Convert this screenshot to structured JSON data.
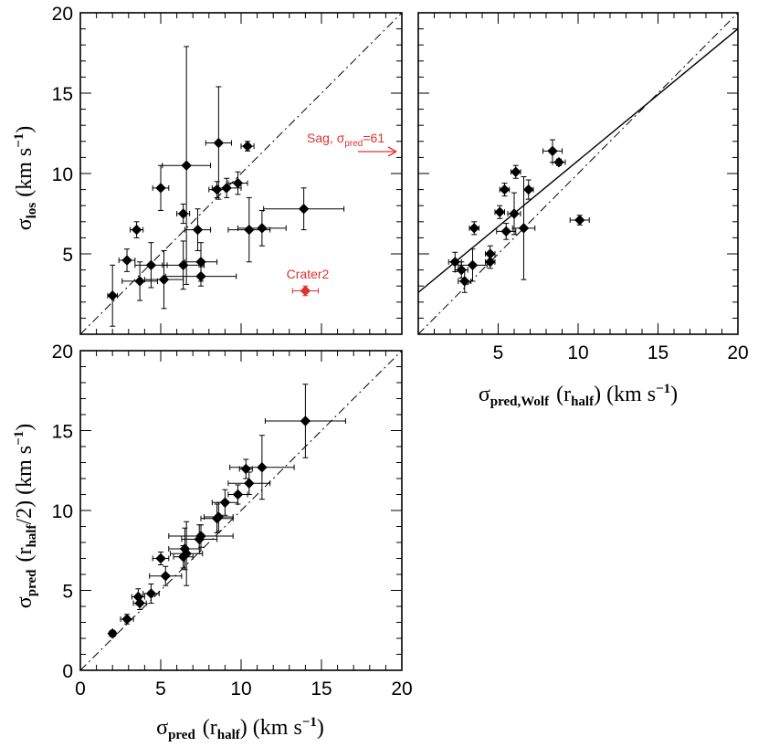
{
  "chart_data": [
    {
      "id": "panel_a",
      "type": "scatter",
      "title": "",
      "xlabel": "",
      "ylabel_sym": "σ",
      "ylabel_sub": "los",
      "ylabel_units": "(km s",
      "ylabel_exp": "−1",
      "ylabel_close": ")",
      "xlim": [
        0,
        20
      ],
      "ylim": [
        0,
        20
      ],
      "xticks": [],
      "yticks": [
        "5",
        "10",
        "15",
        "20"
      ],
      "reference_lines": [
        {
          "kind": "one-to-one",
          "style": "dash-dot"
        }
      ],
      "points": [
        {
          "x": 2.0,
          "y": 2.4,
          "xerr": 0.3,
          "yerr": 1.9
        },
        {
          "x": 2.9,
          "y": 4.6,
          "xerr": 0.5,
          "yerr": 0.7
        },
        {
          "x": 3.5,
          "y": 6.5,
          "xerr": 0.4,
          "yerr": 0.5
        },
        {
          "x": 3.7,
          "y": 3.3,
          "xerr": 1.1,
          "yerr": 1.2
        },
        {
          "x": 4.4,
          "y": 4.3,
          "xerr": 1.0,
          "yerr": 1.4
        },
        {
          "x": 5.0,
          "y": 9.1,
          "xerr": 0.5,
          "yerr": 1.4
        },
        {
          "x": 5.2,
          "y": 3.4,
          "xerr": 1.2,
          "yerr": 1.8
        },
        {
          "x": 6.4,
          "y": 7.5,
          "xerr": 0.4,
          "yerr": 0.6
        },
        {
          "x": 6.4,
          "y": 4.3,
          "xerr": 1.3,
          "yerr": 1.5
        },
        {
          "x": 6.6,
          "y": 10.5,
          "xerr": 1.5,
          "yerr": 7.4
        },
        {
          "x": 7.3,
          "y": 6.5,
          "xerr": 0.8,
          "yerr": 1.3
        },
        {
          "x": 7.5,
          "y": 4.5,
          "xerr": 1.0,
          "yerr": 1.2
        },
        {
          "x": 7.5,
          "y": 3.6,
          "xerr": 2.2,
          "yerr": 0.6
        },
        {
          "x": 8.5,
          "y": 9.0,
          "xerr": 0.5,
          "yerr": 0.5
        },
        {
          "x": 8.6,
          "y": 11.9,
          "xerr": 0.8,
          "yerr": 3.5
        },
        {
          "x": 9.1,
          "y": 9.1,
          "xerr": 0.9,
          "yerr": 0.6
        },
        {
          "x": 9.8,
          "y": 9.4,
          "xerr": 0.6,
          "yerr": 0.7
        },
        {
          "x": 10.4,
          "y": 11.7,
          "xerr": 0.4,
          "yerr": 0.3
        },
        {
          "x": 10.5,
          "y": 6.5,
          "xerr": 1.3,
          "yerr": 2.0
        },
        {
          "x": 11.3,
          "y": 6.6,
          "xerr": 1.5,
          "yerr": 1.1
        },
        {
          "x": 13.9,
          "y": 7.8,
          "xerr": 2.5,
          "yerr": 1.3
        }
      ],
      "highlight_points": [
        {
          "label": "Crater2",
          "x": 14.0,
          "y": 2.7,
          "xerr": 0.8,
          "yerr": 0.3,
          "color": "#e03030"
        }
      ],
      "arrow_annotation": {
        "label": "Sag, σ",
        "sub": "pred",
        "suffix": "=61",
        "x": 20,
        "y": 11.3,
        "color": "#e03030"
      }
    },
    {
      "id": "panel_b",
      "type": "scatter",
      "title": "",
      "xlabel_sym": "σ",
      "xlabel_sub": "pred,Wolf",
      "xlabel_arg": "(r",
      "xlabel_arg_sub": "half",
      "xlabel_units": ") (km s",
      "xlabel_exp": "−1",
      "xlabel_close": ")",
      "ylabel": "",
      "xlim": [
        0,
        20
      ],
      "ylim": [
        0,
        20
      ],
      "xticks": [
        "5",
        "10",
        "15",
        "20"
      ],
      "yticks": [],
      "reference_lines": [
        {
          "kind": "one-to-one",
          "style": "dash-dot"
        },
        {
          "kind": "fit",
          "style": "solid",
          "x": [
            0,
            20
          ],
          "y": [
            2.6,
            19.0
          ]
        }
      ],
      "points": [
        {
          "x": 2.3,
          "y": 4.5,
          "xerr": 0.4,
          "yerr": 0.6
        },
        {
          "x": 2.7,
          "y": 4.0,
          "xerr": 0.4,
          "yerr": 0.5
        },
        {
          "x": 2.9,
          "y": 3.3,
          "xerr": 0.4,
          "yerr": 0.7
        },
        {
          "x": 3.4,
          "y": 4.3,
          "xerr": 0.9,
          "yerr": 1.0
        },
        {
          "x": 3.5,
          "y": 6.6,
          "xerr": 0.3,
          "yerr": 0.4
        },
        {
          "x": 4.5,
          "y": 5.0,
          "xerr": 0.3,
          "yerr": 0.5
        },
        {
          "x": 4.5,
          "y": 4.5,
          "xerr": 0.3,
          "yerr": 0.4
        },
        {
          "x": 5.1,
          "y": 7.6,
          "xerr": 0.3,
          "yerr": 0.4
        },
        {
          "x": 5.4,
          "y": 9.0,
          "xerr": 0.3,
          "yerr": 0.4
        },
        {
          "x": 5.5,
          "y": 6.4,
          "xerr": 0.6,
          "yerr": 0.5
        },
        {
          "x": 6.0,
          "y": 7.5,
          "xerr": 0.4,
          "yerr": 1.3
        },
        {
          "x": 6.1,
          "y": 10.1,
          "xerr": 0.3,
          "yerr": 0.4
        },
        {
          "x": 6.6,
          "y": 6.6,
          "xerr": 0.7,
          "yerr": 3.2
        },
        {
          "x": 6.9,
          "y": 9.0,
          "xerr": 0.3,
          "yerr": 0.6
        },
        {
          "x": 8.4,
          "y": 11.4,
          "xerr": 0.6,
          "yerr": 0.7
        },
        {
          "x": 8.8,
          "y": 10.7,
          "xerr": 0.4,
          "yerr": 0.2
        },
        {
          "x": 10.1,
          "y": 7.1,
          "xerr": 0.6,
          "yerr": 0.3
        }
      ]
    },
    {
      "id": "panel_c",
      "type": "scatter",
      "title": "",
      "xlabel_sym": "σ",
      "xlabel_sub": "pred",
      "xlabel_arg": "(r",
      "xlabel_arg_sub": "half",
      "xlabel_units": ") (km s",
      "xlabel_exp": "−1",
      "xlabel_close": ")",
      "ylabel_sym": "σ",
      "ylabel_sub": "pred",
      "ylabel_arg": "(r",
      "ylabel_arg_sub": "half",
      "ylabel_units": "/2) (km s",
      "ylabel_exp": "−1",
      "ylabel_close": ")",
      "xlim": [
        0,
        20
      ],
      "ylim": [
        0,
        20
      ],
      "xticks": [
        "0",
        "5",
        "10",
        "15",
        "20"
      ],
      "yticks": [
        "0",
        "5",
        "10",
        "15",
        "20"
      ],
      "reference_lines": [
        {
          "kind": "one-to-one",
          "style": "dash-dot"
        }
      ],
      "points": [
        {
          "x": 2.0,
          "y": 2.3,
          "xerr": 0.2,
          "yerr": 0.2
        },
        {
          "x": 2.9,
          "y": 3.2,
          "xerr": 0.4,
          "yerr": 0.3
        },
        {
          "x": 3.6,
          "y": 4.6,
          "xerr": 0.4,
          "yerr": 0.5
        },
        {
          "x": 3.7,
          "y": 4.2,
          "xerr": 0.4,
          "yerr": 0.4
        },
        {
          "x": 4.4,
          "y": 4.8,
          "xerr": 0.5,
          "yerr": 0.6
        },
        {
          "x": 5.0,
          "y": 7.0,
          "xerr": 0.5,
          "yerr": 0.4
        },
        {
          "x": 5.3,
          "y": 5.9,
          "xerr": 1.0,
          "yerr": 0.6
        },
        {
          "x": 6.4,
          "y": 7.1,
          "xerr": 0.6,
          "yerr": 0.7
        },
        {
          "x": 6.5,
          "y": 7.6,
          "xerr": 1.0,
          "yerr": 1.3
        },
        {
          "x": 6.6,
          "y": 7.3,
          "xerr": 1.0,
          "yerr": 2.0
        },
        {
          "x": 7.4,
          "y": 8.2,
          "xerr": 1.1,
          "yerr": 0.9
        },
        {
          "x": 7.5,
          "y": 8.4,
          "xerr": 2.0,
          "yerr": 0.7
        },
        {
          "x": 8.5,
          "y": 9.5,
          "xerr": 1.0,
          "yerr": 0.9
        },
        {
          "x": 8.6,
          "y": 9.6,
          "xerr": 0.9,
          "yerr": 0.9
        },
        {
          "x": 9.0,
          "y": 10.5,
          "xerr": 0.8,
          "yerr": 0.8
        },
        {
          "x": 9.8,
          "y": 11.0,
          "xerr": 0.6,
          "yerr": 0.6
        },
        {
          "x": 10.3,
          "y": 12.6,
          "xerr": 0.4,
          "yerr": 0.6
        },
        {
          "x": 10.5,
          "y": 11.7,
          "xerr": 1.3,
          "yerr": 0.7
        },
        {
          "x": 11.3,
          "y": 12.7,
          "xerr": 2.0,
          "yerr": 2.0
        },
        {
          "x": 14.0,
          "y": 15.6,
          "xerr": 2.5,
          "yerr": 2.3
        }
      ]
    }
  ]
}
